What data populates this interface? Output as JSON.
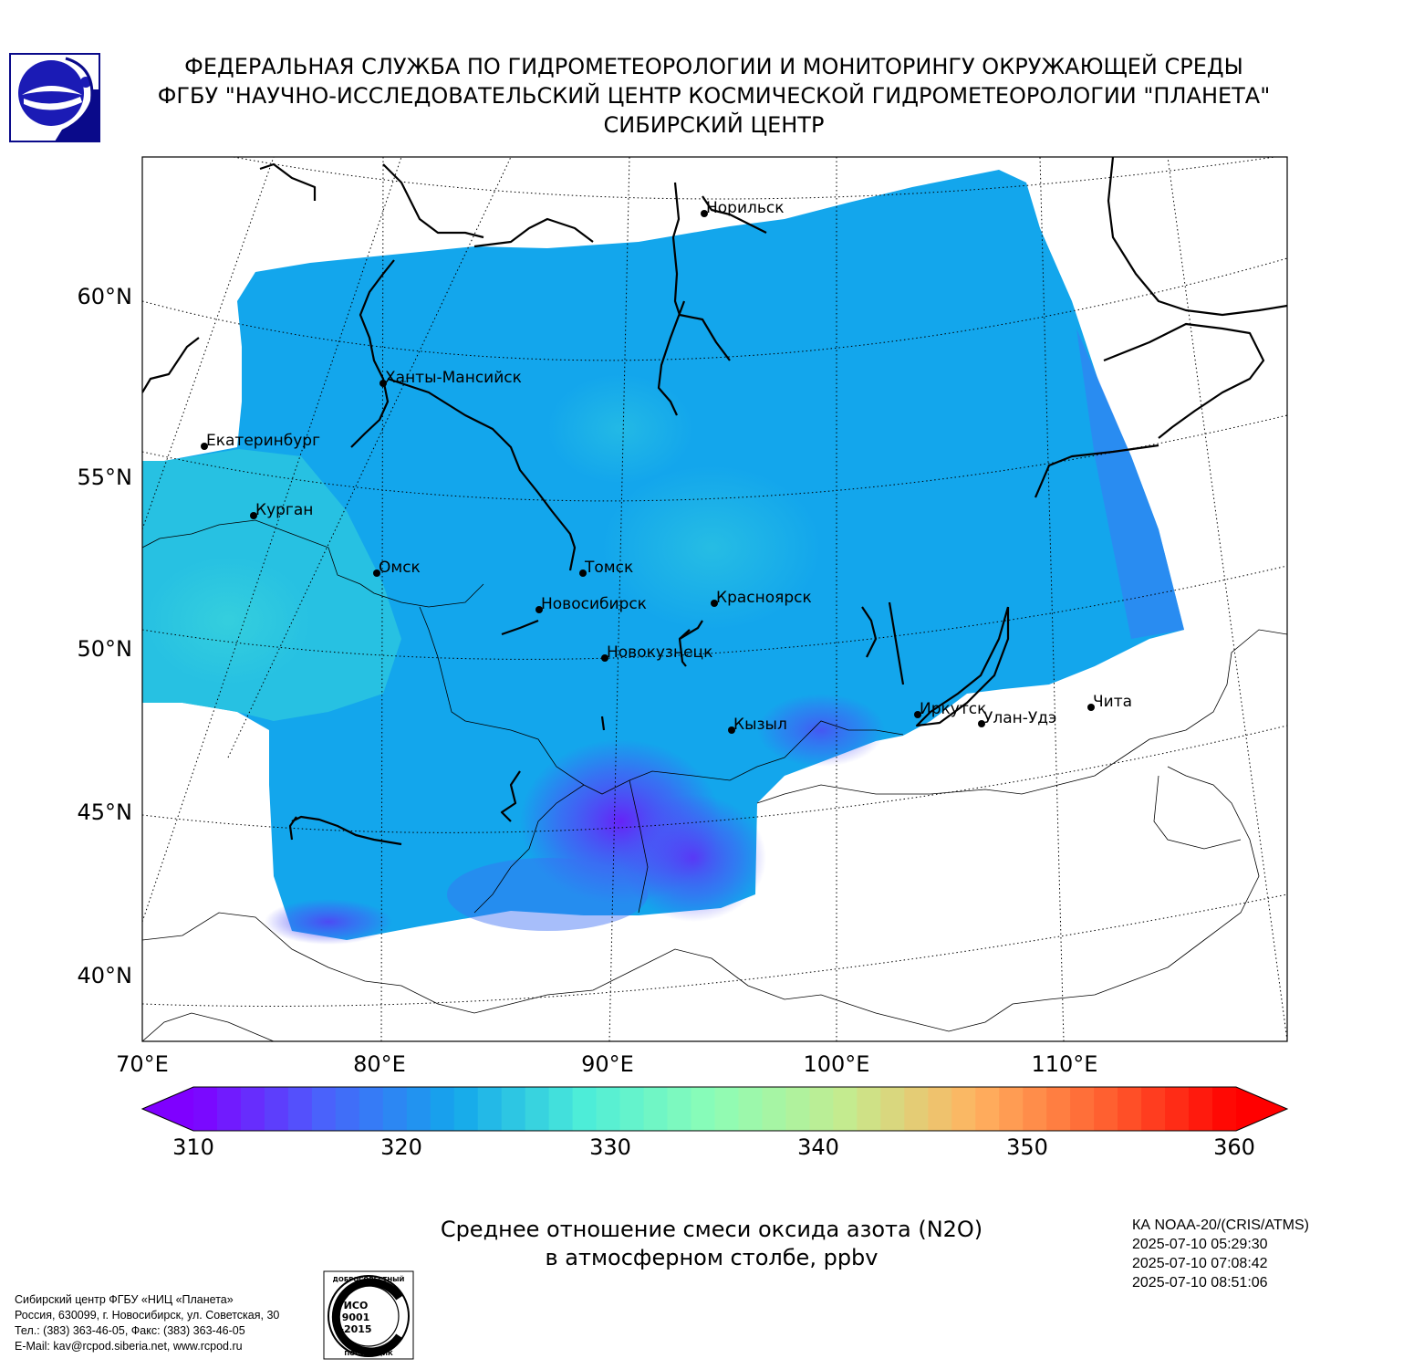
{
  "header": {
    "line1": "ФЕДЕРАЛЬНАЯ СЛУЖБА ПО ГИДРОМЕТЕОРОЛОГИИ И МОНИТОРИНГУ ОКРУЖАЮЩЕЙ СРЕДЫ",
    "line2": "ФГБУ \"НАУЧНО-ИССЛЕДОВАТЕЛЬСКИЙ ЦЕНТР КОСМИЧЕСКОЙ ГИДРОМЕТЕОРОЛОГИИ \"ПЛАНЕТА\"",
    "line3": "СИБИРСКИЙ ЦЕНТР"
  },
  "map": {
    "lat_labels": [
      "60°N",
      "55°N",
      "50°N",
      "45°N",
      "40°N"
    ],
    "lon_labels": [
      "70°E",
      "80°E",
      "90°E",
      "100°E",
      "110°E"
    ],
    "cities": [
      {
        "name": "Норильск",
        "lon": 88.2,
        "lat": 69.3
      },
      {
        "name": "Ханты-Мансийск",
        "lon": 69.0,
        "lat": 61.0
      },
      {
        "name": "Екатеринбург",
        "lon": 60.6,
        "lat": 56.8
      },
      {
        "name": "Курган",
        "lon": 65.3,
        "lat": 55.4
      },
      {
        "name": "Омск",
        "lon": 73.4,
        "lat": 55.0
      },
      {
        "name": "Томск",
        "lon": 84.9,
        "lat": 56.5
      },
      {
        "name": "Новосибирск",
        "lon": 82.9,
        "lat": 55.0
      },
      {
        "name": "Красноярск",
        "lon": 92.9,
        "lat": 56.0
      },
      {
        "name": "Новокузнецк",
        "lon": 87.1,
        "lat": 53.8
      },
      {
        "name": "Кызыл",
        "lon": 94.4,
        "lat": 51.7
      },
      {
        "name": "Иркутск",
        "lon": 104.3,
        "lat": 52.3
      },
      {
        "name": "Улан-Удэ",
        "lon": 107.6,
        "lat": 51.8
      },
      {
        "name": "Чита",
        "lon": 113.5,
        "lat": 52.0
      }
    ]
  },
  "colorbar": {
    "min": 310,
    "max": 360,
    "ticks": [
      "310",
      "320",
      "330",
      "340",
      "350",
      "360"
    ],
    "colors": [
      "#7f00ff",
      "#4a62fb",
      "#13a6ec",
      "#4dedd8",
      "#8dfdb6",
      "#c4eb8f",
      "#ffb360",
      "#ff6030",
      "#ff0000"
    ]
  },
  "field": {
    "range_shown": [
      312,
      328
    ],
    "color_low": "#6a1cf8",
    "color_main": "#13a6ec",
    "color_high": "#36d0dd"
  },
  "caption": {
    "line1": "Среднее отношение смеси оксида азота (N2O)",
    "line2": "в атмосферном столбе, ppbv"
  },
  "satellite": {
    "name": "КА NOAA-20/(CRIS/ATMS)",
    "times": [
      "2025-07-10 05:29:30",
      "2025-07-10 07:08:42",
      "2025-07-10 08:51:06"
    ]
  },
  "footer": {
    "line1": "Сибирский центр ФГБУ «НИЦ «Планета»",
    "line2": "Россия, 630099, г. Новосибирск, ул. Советская, 30",
    "line3": "Тел.: (383) 363-46-05, Факс: (383) 363-46-05",
    "line4": "E-Mail: kav@rcpod.siberia.net, www.rcpod.ru"
  },
  "iso_stamp": {
    "top": "ДОБРОСОВЕСТНЫЙ",
    "bottom": "ПОСТАВЩИК",
    "l1": "ИСО",
    "l2": "9001",
    "l3": "-2015"
  }
}
